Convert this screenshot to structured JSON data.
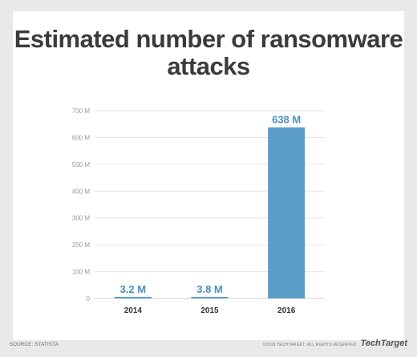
{
  "chart_data": {
    "type": "bar",
    "title": "Estimated number of ransomware attacks",
    "categories": [
      "2014",
      "2015",
      "2016"
    ],
    "values": [
      3.2,
      3.8,
      638
    ],
    "value_labels": [
      "3.2 M",
      "3.8 M",
      "638 M"
    ],
    "ylim": [
      0,
      700
    ],
    "yticks": [
      0,
      100,
      200,
      300,
      400,
      500,
      600,
      700
    ],
    "ytick_labels": [
      "0",
      "100 M",
      "200 M",
      "300 M",
      "400 M",
      "500 M",
      "600 M",
      "700 M"
    ],
    "xlabel": "",
    "ylabel": "",
    "grid": true,
    "bar_color": "#5a9dc8",
    "label_color": "#4b8fbe"
  },
  "footer": {
    "source": "SOURCE: STATISTA",
    "copyright": "©2018 TECHTARGET. ALL RIGHTS RESERVED",
    "brand": "TechTarget"
  }
}
